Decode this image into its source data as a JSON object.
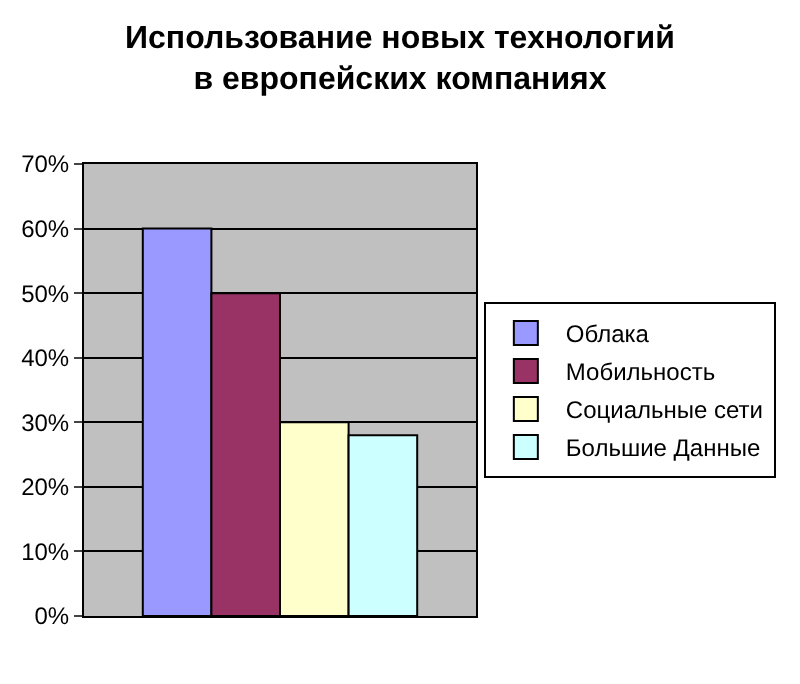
{
  "chart_data": {
    "type": "bar",
    "title": "Использование новых технологий в европейских компаниях",
    "categories": [
      null
    ],
    "series": [
      {
        "name": "Облака",
        "color": "#9999ff",
        "values": [
          60
        ]
      },
      {
        "name": "Мобильность",
        "color": "#993366",
        "values": [
          50
        ]
      },
      {
        "name": "Социальные сети",
        "color": "#ffffcc",
        "values": [
          30
        ]
      },
      {
        "name": "Большие Данные",
        "color": "#ccffff",
        "values": [
          28
        ]
      }
    ],
    "ylim": [
      0,
      70
    ],
    "yticks": [
      {
        "value": 0,
        "label": "0%"
      },
      {
        "value": 10,
        "label": "10%"
      },
      {
        "value": 20,
        "label": "20%"
      },
      {
        "value": 30,
        "label": "30%"
      },
      {
        "value": 40,
        "label": "40%"
      },
      {
        "value": 50,
        "label": "50%"
      },
      {
        "value": 60,
        "label": "60%"
      },
      {
        "value": 70,
        "label": "70%"
      }
    ],
    "grid": "y",
    "legend": "right"
  }
}
